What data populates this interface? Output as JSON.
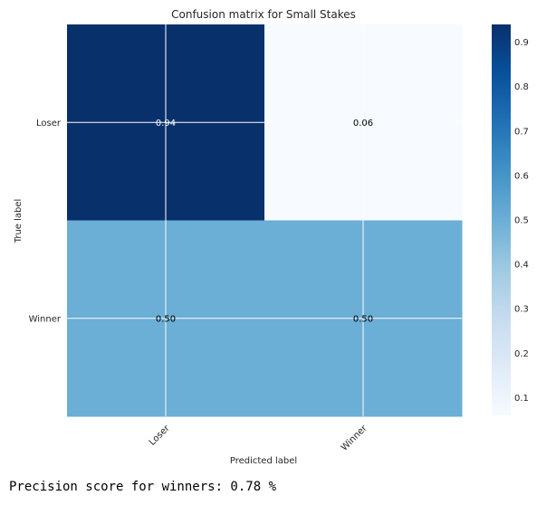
{
  "chart_data": {
    "type": "heatmap",
    "title": "Confusion matrix for Small Stakes",
    "xlabel": "Predicted label",
    "ylabel": "True label",
    "x_categories": [
      "Loser",
      "Winner"
    ],
    "y_categories": [
      "Loser",
      "Winner"
    ],
    "values": [
      [
        0.94,
        0.06
      ],
      [
        0.5,
        0.5
      ]
    ],
    "cell_labels": [
      [
        "0.94",
        "0.06"
      ],
      [
        "0.50",
        "0.50"
      ]
    ],
    "colormap": "Blues",
    "colorbar": {
      "range": [
        0.06,
        0.94
      ],
      "ticks": [
        0.1,
        0.2,
        0.3,
        0.4,
        0.5,
        0.6,
        0.7,
        0.8,
        0.9
      ],
      "tick_labels": [
        "0.1",
        "0.2",
        "0.3",
        "0.4",
        "0.5",
        "0.6",
        "0.7",
        "0.8",
        "0.9"
      ]
    },
    "grid": true
  },
  "footer": {
    "precision_text": "Precision score for winners: 0.78 %"
  }
}
